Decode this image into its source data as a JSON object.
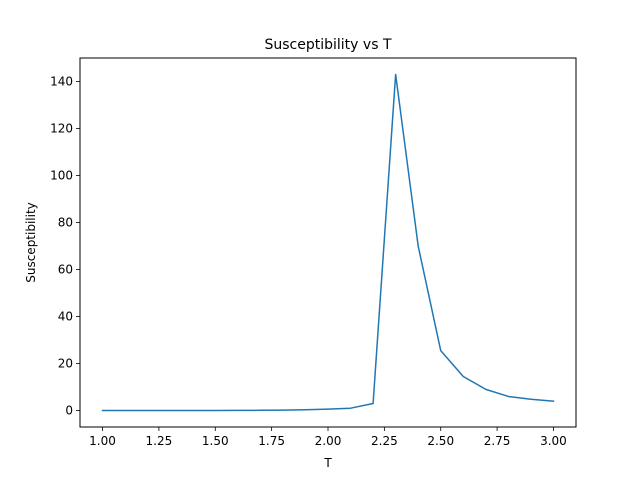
{
  "chart_data": {
    "type": "line",
    "title": "Susceptibility vs T",
    "xlabel": "T",
    "ylabel": "Susceptibility",
    "xlim": [
      0.9,
      3.1
    ],
    "ylim": [
      -7,
      150
    ],
    "grid": false,
    "xticks": [
      1.0,
      1.25,
      1.5,
      1.75,
      2.0,
      2.25,
      2.5,
      2.75,
      3.0
    ],
    "xtick_labels": [
      "1.00",
      "1.25",
      "1.50",
      "1.75",
      "2.00",
      "2.25",
      "2.50",
      "2.75",
      "3.00"
    ],
    "yticks": [
      0,
      20,
      40,
      60,
      80,
      100,
      120,
      140
    ],
    "ytick_labels": [
      "0",
      "20",
      "40",
      "60",
      "80",
      "100",
      "120",
      "140"
    ],
    "series": [
      {
        "color": "#1f77b4",
        "x": [
          1.0,
          1.1,
          1.2,
          1.3,
          1.4,
          1.5,
          1.6,
          1.7,
          1.8,
          1.9,
          2.0,
          2.1,
          2.2,
          2.3,
          2.4,
          2.5,
          2.6,
          2.7,
          2.8,
          2.9,
          3.0
        ],
        "y": [
          0.0,
          0.0,
          0.0,
          0.0,
          0.0,
          0.0,
          0.05,
          0.1,
          0.2,
          0.35,
          0.6,
          1.0,
          3.0,
          143.0,
          70.0,
          25.5,
          14.5,
          9.0,
          6.0,
          4.8,
          4.0
        ]
      }
    ]
  }
}
